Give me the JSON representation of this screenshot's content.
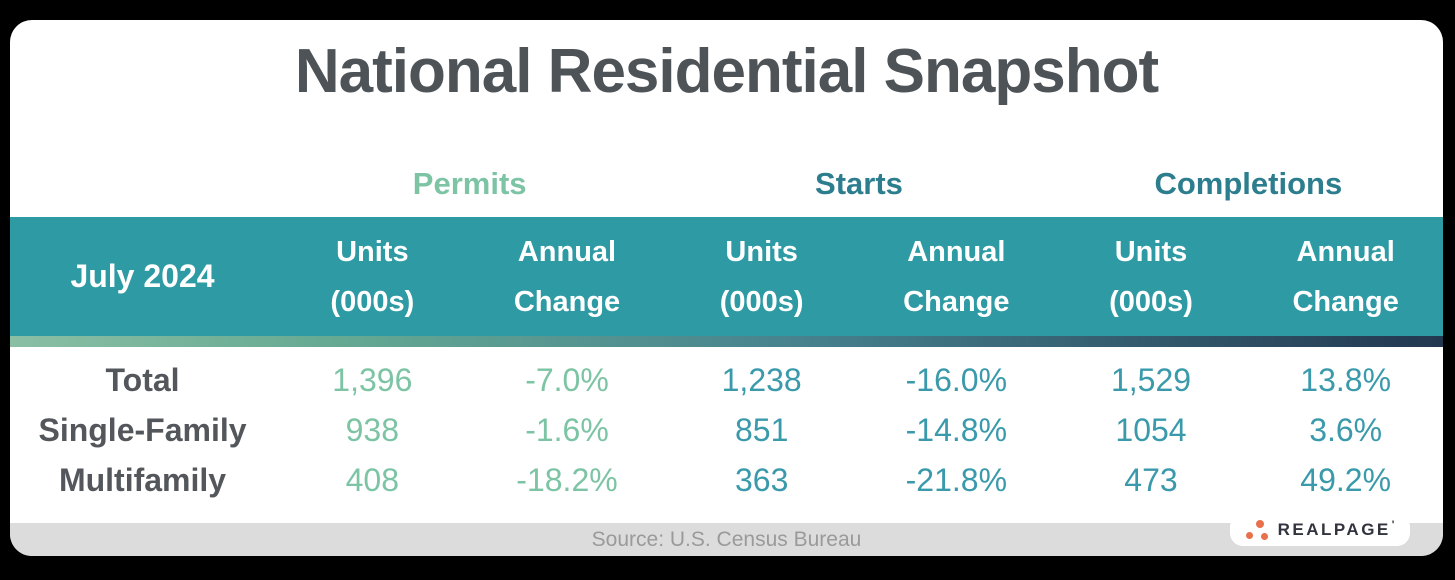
{
  "colors": {
    "background": "#000000",
    "card": "#ffffff",
    "title_text": "#4d5357",
    "band_teal": "#2e9aa3",
    "band_text": "#ffffff",
    "permits_accent": "#7dc4a5",
    "group_header_teal": "#2c7d8d",
    "value_teal": "#3a9aab",
    "row_label": "#53575b",
    "divider_gradient_left": "#8abfa4",
    "divider_gradient_right": "#223850",
    "source_bar": "#dcdcdc",
    "source_text": "#9a9a9a",
    "logo_text": "#32333e",
    "logo_dot_orange": "#e8714b"
  },
  "chart_data": {
    "type": "table",
    "title": "National Residential Snapshot",
    "period": "July 2024",
    "column_groups": [
      "Permits",
      "Starts",
      "Completions"
    ],
    "sub_columns": [
      "Units (000s)",
      "Annual Change",
      "Units (000s)",
      "Annual Change",
      "Units (000s)",
      "Annual Change"
    ],
    "rows": [
      {
        "label": "Total",
        "values": [
          "1,396",
          "-7.0%",
          "1,238",
          "-16.0%",
          "1,529",
          "13.8%"
        ]
      },
      {
        "label": "Single-Family",
        "values": [
          "938",
          "-1.6%",
          "851",
          "-14.8%",
          "1054",
          "3.6%"
        ]
      },
      {
        "label": "Multifamily",
        "values": [
          "408",
          "-18.2%",
          "363",
          "-21.8%",
          "473",
          "49.2%"
        ]
      }
    ],
    "source": "Source: U.S. Census Bureau"
  },
  "header": {
    "units_line1": "Units",
    "units_line2": "(000s)",
    "annual_line1": "Annual",
    "annual_line2": "Change"
  },
  "footer": {
    "logo_text": "REALPAGE",
    "logo_mark": "'"
  }
}
